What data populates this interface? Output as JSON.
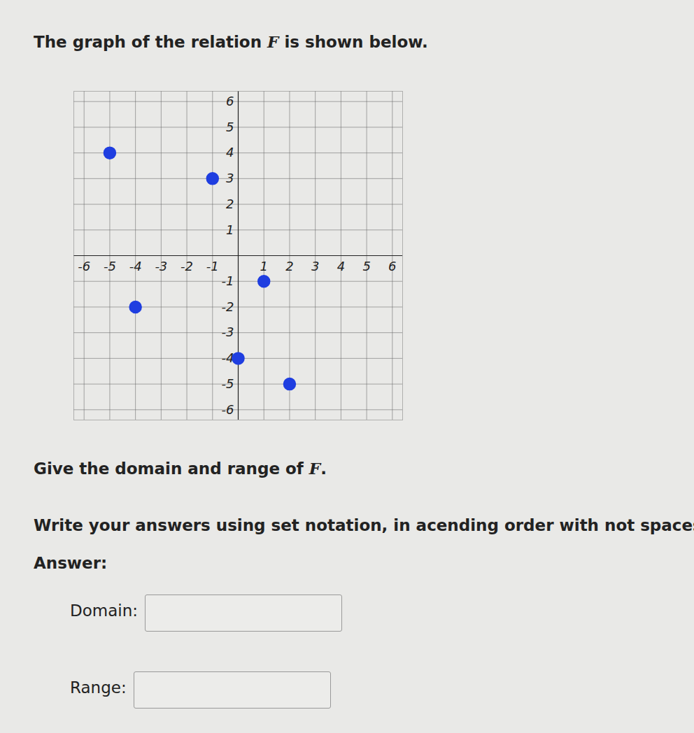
{
  "document": {
    "intro": {
      "before": "The graph of the relation ",
      "variable": "F",
      "after": " is shown below."
    },
    "question": {
      "before": "Give the domain and range of ",
      "variable": "F",
      "after": "."
    },
    "instruction": "Write your answers using set notation, in acending order with not spaces.",
    "answer_heading": "Answer:",
    "fields": [
      "Domain:",
      "Range:"
    ]
  },
  "chart_data": {
    "type": "scatter",
    "x": [
      -5,
      -1,
      -4,
      1,
      0,
      2
    ],
    "values": [
      4,
      3,
      -2,
      -1,
      -4,
      -5
    ],
    "color": "#1f3ee0",
    "marker": "circle",
    "xlim": [
      -6.4,
      6.4
    ],
    "ylim": [
      -6.4,
      6.4
    ],
    "xticks": [
      -6,
      -5,
      -4,
      -3,
      -2,
      -1,
      1,
      2,
      3,
      4,
      5,
      6
    ],
    "yticks": [
      -6,
      -5,
      -4,
      -3,
      -2,
      -1,
      1,
      2,
      3,
      4,
      5,
      6
    ],
    "grid": true
  }
}
